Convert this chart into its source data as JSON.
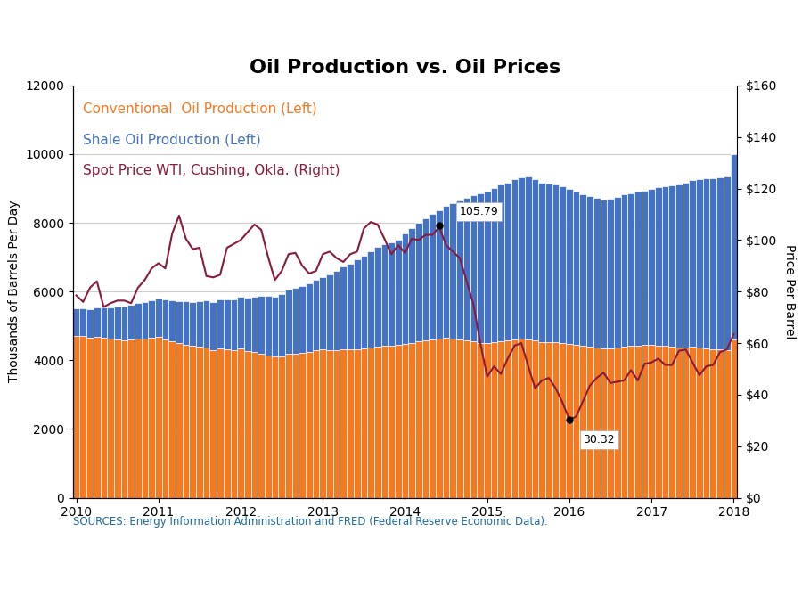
{
  "title": "Oil Production vs. Oil Prices",
  "ylabel_left": "Thousands of Barrels Per Day",
  "ylabel_right": "Price Per Barrel",
  "ylim_left": [
    0,
    12000
  ],
  "ylim_right": [
    0,
    160
  ],
  "yticks_left": [
    0,
    2000,
    4000,
    6000,
    8000,
    10000,
    12000
  ],
  "yticks_right": [
    0,
    20,
    40,
    60,
    80,
    100,
    120,
    140,
    160
  ],
  "ytick_labels_right": [
    "$0",
    "$20",
    "$40",
    "$60",
    "$80",
    "$100",
    "$120",
    "$140",
    "$160"
  ],
  "source_text": "SOURCES: Energy Information Administration and FRED (Federal Reserve Economic Data).",
  "legend_items": [
    {
      "label": "Conventional  Oil Production (Left)",
      "color": "#F47920"
    },
    {
      "label": "Shale Oil Production (Left)",
      "color": "#4472C4"
    },
    {
      "label": "Spot Price WTI, Cushing, Okla. (Right)",
      "color": "#8B1A3A"
    }
  ],
  "bar_color_conventional": "#F47920",
  "bar_color_shale": "#4472C4",
  "line_color_price": "#8B1A3A",
  "background_color": "#FFFFFF",
  "footer_bg_color": "#1D3F5E",
  "footer_text_color": "#FFFFFF",
  "source_text_color": "#1E6B9E",
  "grid_color": "#CCCCCC",
  "annotation_105_value": 105.79,
  "annotation_105_label": "105.79",
  "annotation_105_idx": 53,
  "annotation_30_value": 30.32,
  "annotation_30_label": "30.32",
  "annotation_30_idx": 72,
  "conventional": [
    4700,
    4700,
    4650,
    4680,
    4650,
    4620,
    4600,
    4580,
    4600,
    4620,
    4620,
    4650,
    4680,
    4600,
    4550,
    4500,
    4450,
    4420,
    4400,
    4380,
    4300,
    4350,
    4330,
    4300,
    4350,
    4280,
    4250,
    4200,
    4150,
    4100,
    4120,
    4200,
    4200,
    4220,
    4240,
    4300,
    4330,
    4300,
    4300,
    4320,
    4320,
    4330,
    4350,
    4380,
    4400,
    4420,
    4430,
    4450,
    4480,
    4500,
    4550,
    4580,
    4600,
    4620,
    4650,
    4620,
    4600,
    4580,
    4550,
    4500,
    4500,
    4520,
    4560,
    4580,
    4600,
    4620,
    4600,
    4580,
    4520,
    4520,
    4520,
    4500,
    4480,
    4450,
    4420,
    4400,
    4380,
    4350,
    4350,
    4380,
    4400,
    4420,
    4430,
    4440,
    4450,
    4430,
    4420,
    4400,
    4380,
    4360,
    4400,
    4380,
    4350,
    4330,
    4320,
    4300,
    4600
  ],
  "shale": [
    800,
    820,
    840,
    870,
    900,
    930,
    960,
    990,
    1020,
    1050,
    1080,
    1100,
    1130,
    1160,
    1200,
    1230,
    1260,
    1280,
    1320,
    1360,
    1400,
    1430,
    1450,
    1480,
    1500,
    1540,
    1600,
    1680,
    1720,
    1760,
    1800,
    1850,
    1900,
    1950,
    2000,
    2050,
    2100,
    2200,
    2300,
    2400,
    2500,
    2600,
    2700,
    2800,
    2900,
    2950,
    3000,
    3050,
    3200,
    3350,
    3450,
    3550,
    3650,
    3750,
    3850,
    3950,
    4050,
    4150,
    4250,
    4350,
    4400,
    4500,
    4550,
    4600,
    4680,
    4700,
    4750,
    4700,
    4650,
    4620,
    4600,
    4570,
    4500,
    4450,
    4400,
    4380,
    4350,
    4320,
    4350,
    4380,
    4420,
    4450,
    4480,
    4500,
    4550,
    4600,
    4650,
    4700,
    4750,
    4800,
    4850,
    4900,
    4950,
    4980,
    5000,
    5050,
    5400
  ],
  "wti_price": [
    78.5,
    76.0,
    81.5,
    84.0,
    74.0,
    75.5,
    76.5,
    76.5,
    75.5,
    81.5,
    84.5,
    89.0,
    91.0,
    89.0,
    102.5,
    109.5,
    100.5,
    96.5,
    97.0,
    86.0,
    85.5,
    86.5,
    97.0,
    98.5,
    100.0,
    103.0,
    106.0,
    104.0,
    93.5,
    84.5,
    88.0,
    94.5,
    95.0,
    90.0,
    87.0,
    88.0,
    94.5,
    95.5,
    93.0,
    91.5,
    94.5,
    95.5,
    104.5,
    107.0,
    106.0,
    100.5,
    94.5,
    98.0,
    95.0,
    100.5,
    100.0,
    102.0,
    102.0,
    105.0,
    98.0,
    95.5,
    93.0,
    84.0,
    75.0,
    60.0,
    47.0,
    51.0,
    48.0,
    54.0,
    59.0,
    60.0,
    51.0,
    42.5,
    45.5,
    46.5,
    42.5,
    37.0,
    30.32,
    31.5,
    37.5,
    43.5,
    46.5,
    48.5,
    44.5,
    45.0,
    45.5,
    49.5,
    45.5,
    52.0,
    52.5,
    54.0,
    51.5,
    51.5,
    57.0,
    57.5,
    52.5,
    47.5,
    51.0,
    51.5,
    56.5,
    57.5,
    63.5
  ],
  "xtick_years": [
    2010,
    2011,
    2012,
    2013,
    2014,
    2015,
    2016,
    2017,
    2018
  ],
  "title_fontsize": 16,
  "axis_label_fontsize": 10,
  "tick_fontsize": 10,
  "legend_fontsize": 11,
  "source_fontsize": 8.5
}
